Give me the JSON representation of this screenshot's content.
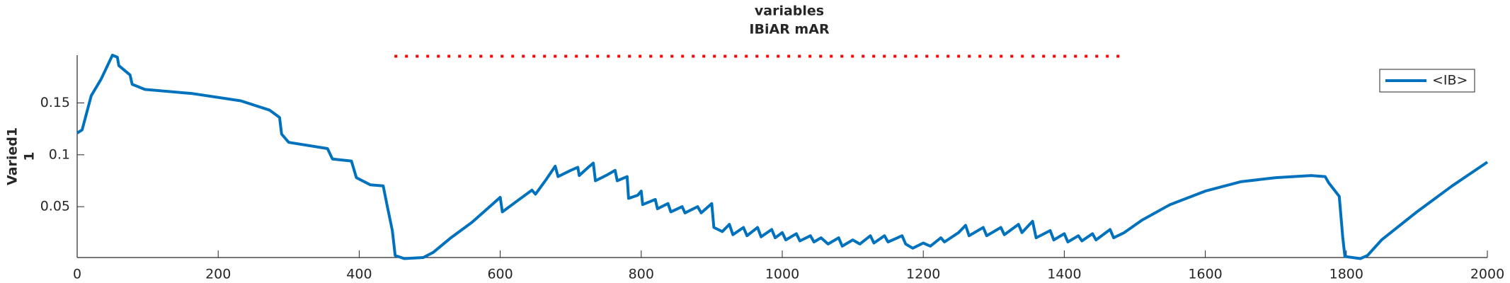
{
  "chart_data": {
    "type": "line",
    "title": "variables",
    "subtitle": "IBiAR mAR",
    "ylabel": [
      "Varied1",
      "1"
    ],
    "xlim": [
      0,
      2000
    ],
    "xticks": [
      0,
      200,
      400,
      600,
      800,
      1000,
      1200,
      1400,
      1600,
      1800,
      2000
    ],
    "ylim": [
      0.001,
      0.196
    ],
    "yticks": [
      0.05,
      0.1,
      0.15
    ],
    "grid": false,
    "legend": "northeast",
    "reference_line": {
      "x": [
        450,
        1485
      ],
      "values": [
        0.195,
        0.195
      ],
      "color": "#ff0000",
      "style": "dotted"
    },
    "series": [
      {
        "name": "<IB>",
        "color": "#0072bd",
        "x": [
          0,
          7,
          20,
          34,
          50,
          57,
          59,
          75,
          78,
          96,
          164,
          232,
          273,
          287,
          290,
          300,
          355,
          362,
          389,
          396,
          416,
          434,
          440,
          447,
          451,
          464,
          491,
          505,
          530,
          560,
          585,
          600,
          603,
          625,
          645,
          650,
          665,
          678,
          682,
          700,
          710,
          712,
          725,
          732,
          735,
          750,
          763,
          766,
          780,
          782,
          795,
          800,
          802,
          820,
          823,
          838,
          842,
          858,
          862,
          880,
          885,
          900,
          903,
          915,
          925,
          930,
          945,
          950,
          965,
          970,
          985,
          990,
          1000,
          1005,
          1020,
          1025,
          1040,
          1045,
          1055,
          1065,
          1080,
          1085,
          1100,
          1110,
          1125,
          1130,
          1145,
          1150,
          1170,
          1175,
          1185,
          1200,
          1210,
          1225,
          1230,
          1250,
          1260,
          1265,
          1285,
          1290,
          1310,
          1315,
          1335,
          1340,
          1355,
          1360,
          1380,
          1385,
          1400,
          1405,
          1420,
          1425,
          1440,
          1445,
          1465,
          1470,
          1485,
          1510,
          1550,
          1600,
          1650,
          1700,
          1750,
          1770,
          1775,
          1790,
          1795,
          1798,
          1820,
          1830,
          1850,
          1900,
          1950,
          2000
        ],
        "values": [
          0.121,
          0.124,
          0.157,
          0.173,
          0.196,
          0.194,
          0.186,
          0.177,
          0.168,
          0.163,
          0.159,
          0.152,
          0.143,
          0.136,
          0.12,
          0.112,
          0.106,
          0.096,
          0.094,
          0.078,
          0.071,
          0.07,
          0.05,
          0.027,
          0.003,
          0.0,
          0.001,
          0.006,
          0.02,
          0.035,
          0.05,
          0.059,
          0.045,
          0.056,
          0.066,
          0.062,
          0.076,
          0.089,
          0.079,
          0.085,
          0.088,
          0.08,
          0.088,
          0.092,
          0.075,
          0.08,
          0.085,
          0.075,
          0.079,
          0.058,
          0.061,
          0.065,
          0.052,
          0.057,
          0.048,
          0.053,
          0.045,
          0.05,
          0.044,
          0.05,
          0.044,
          0.053,
          0.03,
          0.026,
          0.033,
          0.023,
          0.03,
          0.022,
          0.03,
          0.021,
          0.028,
          0.02,
          0.025,
          0.018,
          0.024,
          0.017,
          0.022,
          0.016,
          0.02,
          0.014,
          0.02,
          0.012,
          0.018,
          0.014,
          0.022,
          0.015,
          0.022,
          0.016,
          0.022,
          0.014,
          0.01,
          0.015,
          0.012,
          0.02,
          0.016,
          0.025,
          0.032,
          0.022,
          0.03,
          0.022,
          0.03,
          0.023,
          0.033,
          0.025,
          0.036,
          0.02,
          0.027,
          0.018,
          0.024,
          0.016,
          0.022,
          0.017,
          0.024,
          0.018,
          0.028,
          0.02,
          0.025,
          0.037,
          0.052,
          0.065,
          0.074,
          0.078,
          0.08,
          0.079,
          0.073,
          0.06,
          0.02,
          0.002,
          0.0,
          0.003,
          0.018,
          0.045,
          0.07,
          0.093
        ]
      }
    ]
  }
}
